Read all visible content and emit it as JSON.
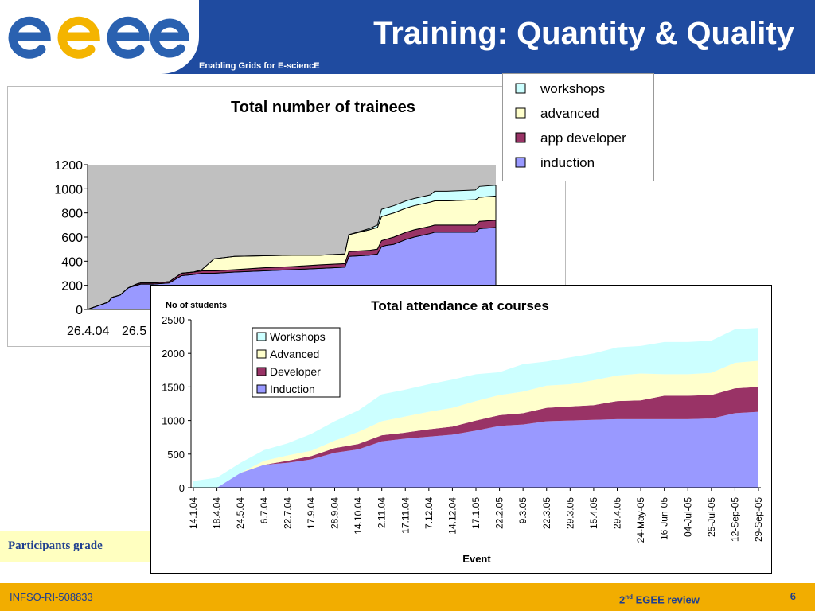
{
  "header": {
    "logo_text": "egee",
    "subtitle": "Enabling Grids for E-sciencE",
    "title": "Training: Quantity & Quality"
  },
  "colors": {
    "header_blue": "#1f4ba0",
    "footer_gold": "#f2ad00",
    "logo_blue": "#2a61b0",
    "logo_yellow": "#f4b400",
    "workshops": "#ccffff",
    "advanced": "#ffffcc",
    "developer": "#993366",
    "induction": "#9999ff",
    "plot_bg_gray": "#c0c0c0"
  },
  "caption": {
    "text": "Participants grade"
  },
  "footer": {
    "project": "INFSO-RI-508833",
    "review_number": "2",
    "review_sup": "nd",
    "review_text": "EGEE review",
    "page": "6"
  },
  "legend1": {
    "items": [
      {
        "label": "workshops",
        "color": "#ccffff"
      },
      {
        "label": "advanced",
        "color": "#ffffcc"
      },
      {
        "label": "app developer",
        "color": "#993366"
      },
      {
        "label": "induction",
        "color": "#9999ff"
      }
    ]
  },
  "chart_data": [
    {
      "type": "area",
      "stacked": true,
      "title": "Total number of trainees",
      "ylim": [
        0,
        1200
      ],
      "yticks": [
        "0",
        "200",
        "400",
        "600",
        "800",
        "1000",
        "1200"
      ],
      "xtick_labels_visible": [
        "26.4.04",
        "26.5"
      ],
      "grid": false,
      "legend": "top-right",
      "x": [
        0,
        0.05,
        0.06,
        0.08,
        0.1,
        0.12,
        0.13,
        0.16,
        0.2,
        0.23,
        0.26,
        0.28,
        0.31,
        0.36,
        0.43,
        0.5,
        0.57,
        0.63,
        0.64,
        0.69,
        0.71,
        0.72,
        0.73,
        0.75,
        0.78,
        0.8,
        0.84,
        0.85,
        0.88,
        0.95,
        0.96,
        1.0
      ],
      "series": [
        {
          "name": "induction",
          "values": [
            0,
            60,
            100,
            120,
            180,
            200,
            210,
            210,
            220,
            280,
            290,
            300,
            300,
            310,
            320,
            330,
            340,
            350,
            440,
            450,
            460,
            520,
            530,
            540,
            580,
            600,
            630,
            640,
            640,
            640,
            670,
            680
          ]
        },
        {
          "name": "app developer",
          "values": [
            0,
            0,
            0,
            0,
            0,
            10,
            10,
            10,
            10,
            20,
            20,
            20,
            20,
            20,
            25,
            25,
            30,
            30,
            40,
            40,
            40,
            50,
            50,
            60,
            60,
            60,
            60,
            60,
            60,
            60,
            60,
            60
          ]
        },
        {
          "name": "advanced",
          "values": [
            0,
            0,
            0,
            0,
            0,
            0,
            0,
            0,
            0,
            0,
            0,
            10,
            100,
            110,
            100,
            95,
            80,
            80,
            140,
            170,
            180,
            200,
            200,
            200,
            200,
            200,
            200,
            200,
            200,
            210,
            200,
            200
          ]
        },
        {
          "name": "workshops",
          "values": [
            0,
            0,
            0,
            0,
            0,
            0,
            0,
            0,
            0,
            0,
            0,
            0,
            0,
            0,
            0,
            0,
            0,
            0,
            0,
            10,
            20,
            60,
            60,
            60,
            60,
            60,
            60,
            80,
            80,
            80,
            90,
            90
          ]
        }
      ]
    },
    {
      "type": "area",
      "stacked": true,
      "title": "Total attendance at courses",
      "ylabel": "No of students",
      "xlabel": "Event",
      "ylim": [
        0,
        2500
      ],
      "yticks": [
        "0",
        "500",
        "1000",
        "1500",
        "2000",
        "2500"
      ],
      "legend": "top-left",
      "categories": [
        "14.1.04",
        "18.4.04",
        "24.5.04",
        "6.7.04",
        "22.7.04",
        "17.9.04",
        "28.9.04",
        "14.10.04",
        "2.11.04",
        "17.11.04",
        "7.12.04",
        "14.12.04",
        "17.1.05",
        "22.2.05",
        "9.3.05",
        "22.3.05",
        "29.3.05",
        "15.4.05",
        "29.4.05",
        "24-May-05",
        "16-Jun-05",
        "04-Jul-05",
        "25-Jul-05",
        "12-Sep-05",
        "29-Sep-05"
      ],
      "series": [
        {
          "name": "Induction",
          "values": [
            0,
            0,
            220,
            340,
            370,
            420,
            520,
            570,
            690,
            730,
            760,
            790,
            850,
            920,
            940,
            990,
            1000,
            1010,
            1020,
            1020,
            1020,
            1020,
            1030,
            1110,
            1130
          ]
        },
        {
          "name": "Developer",
          "values": [
            0,
            0,
            0,
            0,
            30,
            50,
            70,
            80,
            90,
            90,
            110,
            120,
            150,
            160,
            170,
            200,
            210,
            220,
            270,
            280,
            350,
            350,
            350,
            370,
            370
          ]
        },
        {
          "name": "Advanced",
          "values": [
            0,
            0,
            0,
            60,
            80,
            80,
            110,
            180,
            210,
            240,
            260,
            280,
            290,
            300,
            320,
            330,
            330,
            370,
            380,
            400,
            320,
            320,
            330,
            380,
            390
          ]
        },
        {
          "name": "Workshops",
          "values": [
            100,
            150,
            150,
            160,
            180,
            250,
            290,
            320,
            400,
            400,
            410,
            420,
            400,
            340,
            410,
            360,
            400,
            400,
            420,
            410,
            480,
            480,
            480,
            500,
            490
          ]
        }
      ]
    }
  ]
}
